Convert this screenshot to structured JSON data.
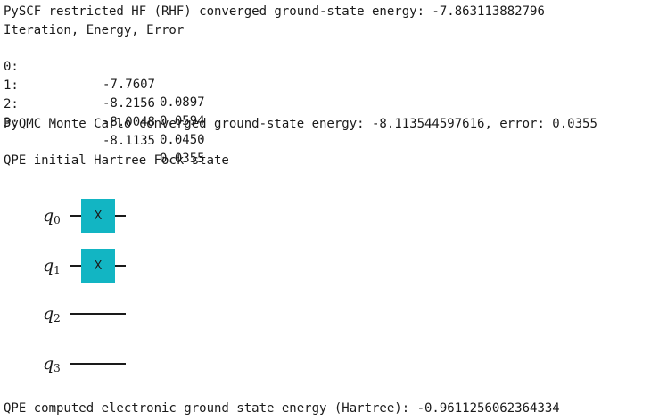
{
  "output": {
    "pyscf_line": "PySCF restricted HF (RHF) converged ground-state energy: -7.863113882796",
    "table_header": "Iteration, Energy, Error",
    "iterations": [
      {
        "iter": "0:",
        "energy": "-7.7607",
        "error": "0.0897"
      },
      {
        "iter": "1:",
        "energy": "-8.2156",
        "error": "0.0594"
      },
      {
        "iter": "2:",
        "energy": "-8.0048",
        "error": "0.0450"
      },
      {
        "iter": "3:",
        "energy": "-8.1135",
        "error": "0.0355"
      }
    ],
    "pyqmc_line": "PyQMC Monte Carlo converged ground-state energy: -8.113544597616, error: 0.0355",
    "qpe_title": "QPE initial Hartree Fock state",
    "qpe_result": "QPE computed electronic ground state energy (Hartree): -0.9611256062364334"
  },
  "circuit": {
    "qubits": [
      {
        "letter": "q",
        "index": "0",
        "gate": "X"
      },
      {
        "letter": "q",
        "index": "1",
        "gate": "X"
      },
      {
        "letter": "q",
        "index": "2",
        "gate": ""
      },
      {
        "letter": "q",
        "index": "3",
        "gate": ""
      }
    ],
    "gate_color": "#12b5c3"
  }
}
